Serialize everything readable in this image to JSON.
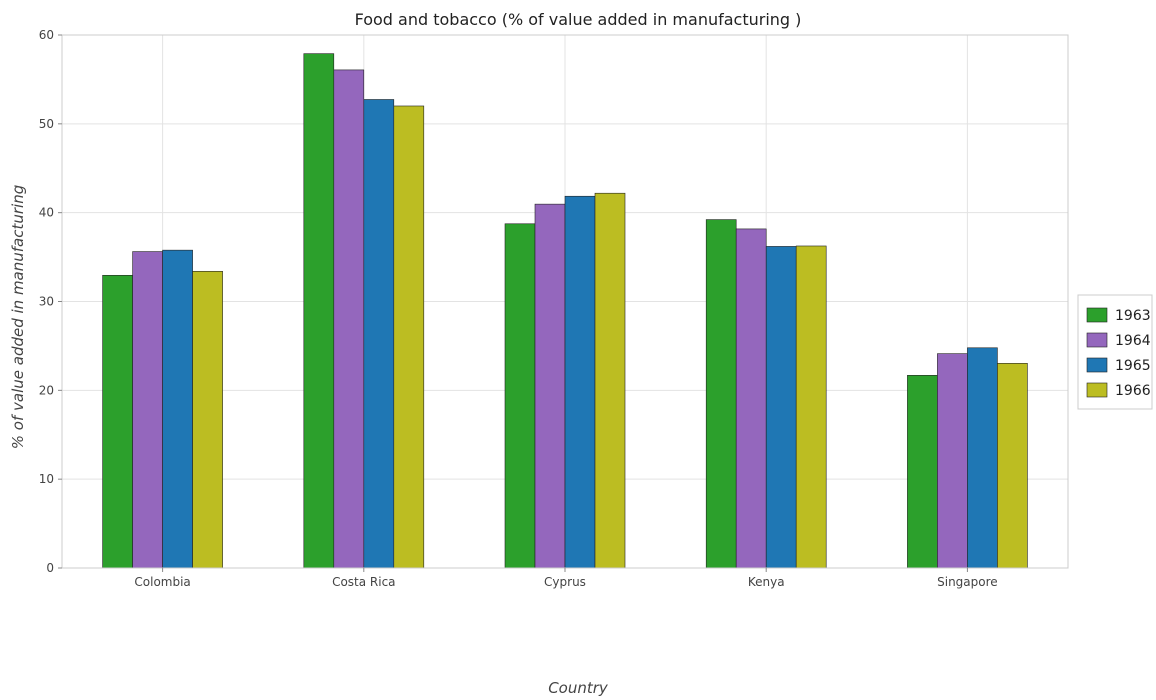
{
  "chart_data": {
    "type": "bar",
    "title": "Food and tobacco (% of value added in manufacturing )",
    "xlabel": "Country",
    "ylabel": "% of value added in manufacturing",
    "categories": [
      "Colombia",
      "Costa Rica",
      "Cyprus",
      "Kenya",
      "Singapore"
    ],
    "series": [
      {
        "name": "1963",
        "color": "#2ca02c",
        "values": [
          32.95,
          57.9,
          38.75,
          39.22,
          21.69
        ]
      },
      {
        "name": "1964",
        "color": "#9467bd",
        "values": [
          35.62,
          56.07,
          40.96,
          38.17,
          24.13
        ]
      },
      {
        "name": "1965",
        "color": "#1f77b4",
        "values": [
          35.78,
          52.74,
          41.85,
          36.2,
          24.79
        ]
      },
      {
        "name": "1966",
        "color": "#bcbd22",
        "values": [
          33.4,
          52.01,
          42.19,
          36.25,
          23.04
        ]
      }
    ],
    "ylim": [
      0,
      60
    ],
    "yticks": [
      0,
      10,
      20,
      30,
      40,
      50,
      60
    ],
    "grid": true,
    "legend_position": "right"
  }
}
